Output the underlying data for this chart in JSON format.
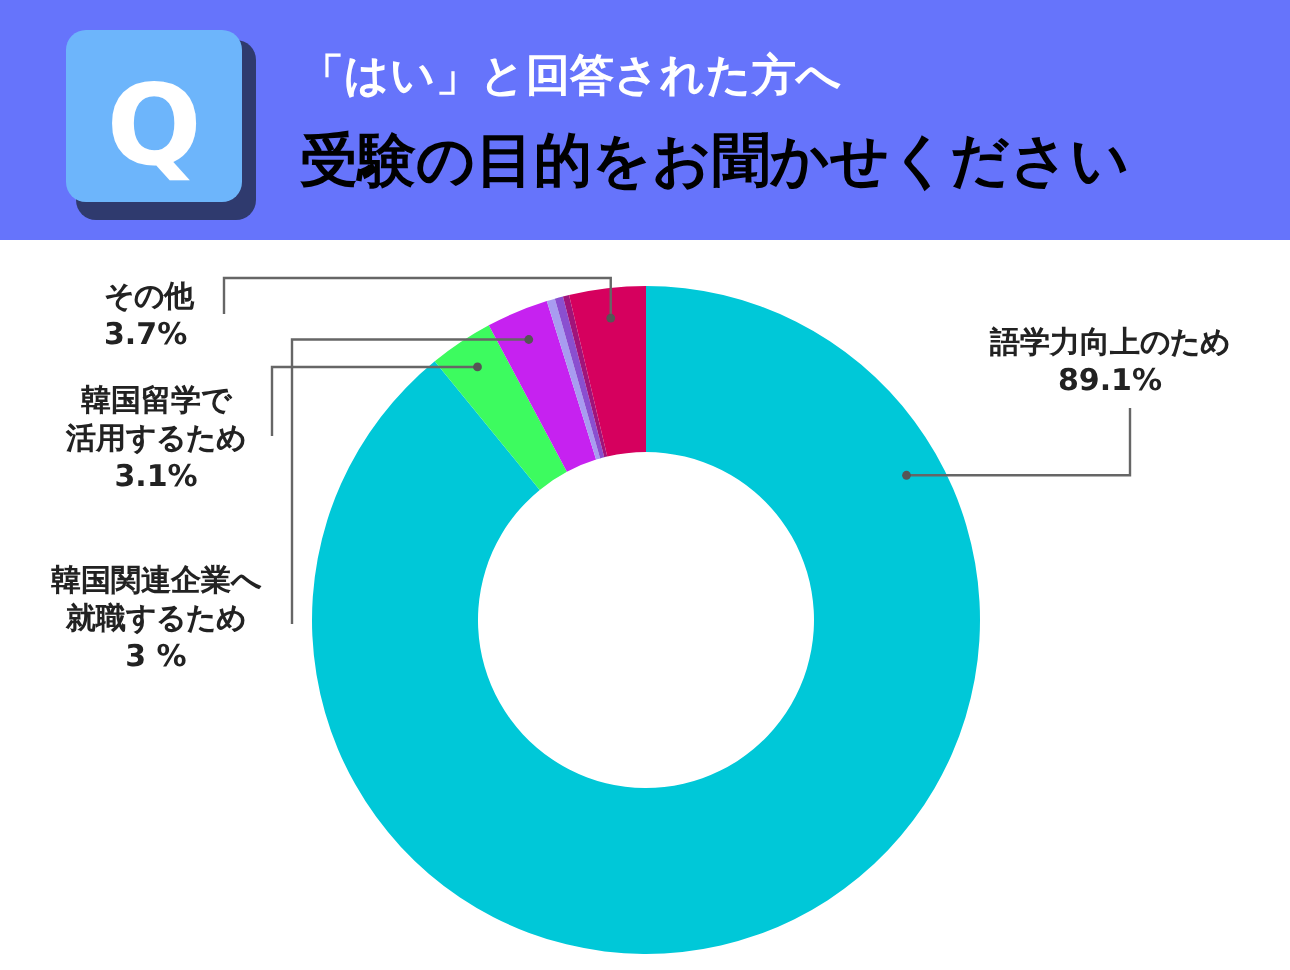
{
  "chart_data": {
    "type": "donut",
    "title": "受験の目的をお聞かせください",
    "subtitle": "「はい」と回答された方へ",
    "annotations": [
      "Q"
    ],
    "categories": [
      "語学力向上のため",
      "韓国留学で活用するため",
      "韓国関連企業へ就職するため",
      null,
      null,
      null,
      "その他"
    ],
    "values": [
      89.1,
      3.1,
      3,
      0.4,
      0.4,
      0.3,
      3.7
    ],
    "value_labels": [
      "89.1%",
      "3.1%",
      "3 %",
      null,
      null,
      null,
      "3.7%"
    ],
    "colors": [
      "#00c8d8",
      "#3dfb5f",
      "#c622f0",
      "#a89cf0",
      "#8a4fd0",
      "#a0147a",
      "#d6005e"
    ]
  }
}
